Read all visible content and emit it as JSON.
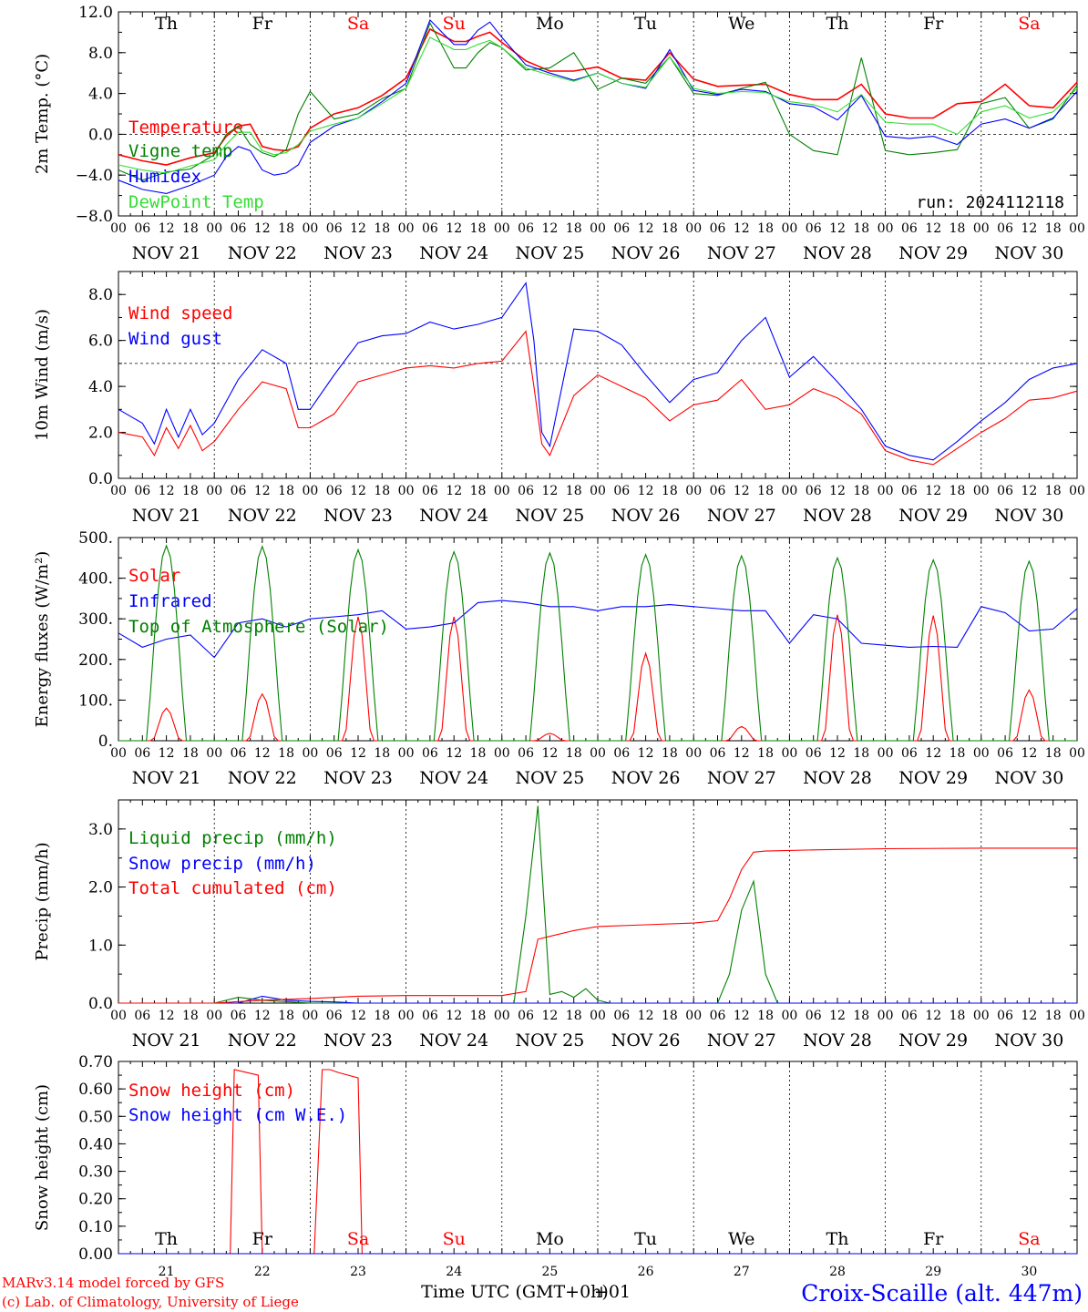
{
  "colors": {
    "red": "#ff0000",
    "green": "#008000",
    "blue": "#0000ff",
    "lightgreen": "#33dd33",
    "black": "#000000"
  },
  "weekday_names": [
    "Th",
    "Fr",
    "Sa",
    "Su",
    "Mo",
    "Tu",
    "We",
    "Th",
    "Fr",
    "Sa"
  ],
  "weekend_flags": [
    false,
    false,
    true,
    true,
    false,
    false,
    false,
    false,
    false,
    true
  ],
  "date_labels": [
    "NOV 21",
    "NOV 22",
    "NOV 23",
    "NOV 24",
    "NOV 25",
    "NOV 26",
    "NOV 27",
    "NOV 28",
    "NOV 29",
    "NOV 30"
  ],
  "hour_ticks": [
    "00",
    "06",
    "12",
    "18"
  ],
  "last_hour_tick": "00",
  "day_numbers": [
    "21",
    "22",
    "23",
    "24",
    "25",
    "26",
    "27",
    "28",
    "29",
    "30"
  ],
  "xlabel": "Time UTC (GMT+0h)",
  "xlabel_overlap": "+01",
  "run_label": "run: 2024112118",
  "footer": {
    "model": "MARv3.14 model forced by GFS",
    "credit": "(c) Lab. of Climatology, University of Liege",
    "station": "Croix-Scaille (alt. 447m)"
  },
  "chart_data": [
    {
      "type": "line",
      "ylabel": "2m Temp. (°C)",
      "ylim": [
        -8,
        12
      ],
      "yticks": [
        "12.0",
        "8.0",
        "4.0",
        "0.0",
        "−4.0",
        "−8.0"
      ],
      "ref_line": 0,
      "x_unit": "hours since NOV 21 00 UTC",
      "series": [
        {
          "name": "Temperature",
          "color": "red",
          "x": [
            0,
            6,
            12,
            18,
            24,
            27,
            30,
            33,
            36,
            39,
            42,
            45,
            48,
            54,
            60,
            66,
            72,
            78,
            84,
            87,
            90,
            93,
            96,
            102,
            108,
            114,
            120,
            126,
            132,
            138,
            144,
            150,
            156,
            162,
            168,
            174,
            180,
            186,
            192,
            198,
            204,
            210,
            216,
            222,
            228,
            234,
            240
          ],
          "values": [
            -2.0,
            -2.6,
            -3.0,
            -2.3,
            -1.8,
            -0.2,
            0.8,
            1.0,
            -1.2,
            -1.5,
            -1.6,
            -1.2,
            0.6,
            2.0,
            2.6,
            3.8,
            5.5,
            10.3,
            9.1,
            9.1,
            9.6,
            10.0,
            9.0,
            7.2,
            6.2,
            6.2,
            6.6,
            5.5,
            5.3,
            8.0,
            5.4,
            4.7,
            4.8,
            4.9,
            3.9,
            3.4,
            3.4,
            4.9,
            2.0,
            1.6,
            1.6,
            3.0,
            3.2,
            4.9,
            2.8,
            2.6,
            5.1
          ]
        },
        {
          "name": "Vigne temp",
          "color": "green",
          "x": [
            0,
            6,
            12,
            18,
            24,
            27,
            30,
            33,
            36,
            39,
            42,
            45,
            48,
            54,
            60,
            66,
            72,
            78,
            84,
            87,
            90,
            93,
            96,
            102,
            108,
            114,
            120,
            126,
            132,
            138,
            144,
            150,
            156,
            162,
            168,
            174,
            180,
            186,
            192,
            198,
            204,
            210,
            216,
            222,
            228,
            234,
            240
          ],
          "values": [
            -3.5,
            -4.5,
            -3.7,
            -3.4,
            -2.0,
            0.0,
            0.8,
            -1.0,
            -1.8,
            -2.2,
            -1.5,
            2.0,
            4.2,
            1.5,
            2.0,
            3.5,
            4.5,
            10.9,
            6.5,
            6.5,
            8.0,
            9.0,
            8.5,
            6.3,
            6.5,
            8.0,
            4.4,
            5.5,
            5.0,
            7.6,
            4.0,
            3.8,
            4.5,
            5.1,
            0.0,
            -1.6,
            -2.0,
            7.5,
            -1.6,
            -2.0,
            -1.8,
            -1.5,
            3.0,
            3.6,
            0.6,
            1.5,
            4.8
          ]
        },
        {
          "name": "Humidex",
          "color": "blue",
          "x": [
            0,
            6,
            12,
            18,
            24,
            27,
            30,
            33,
            36,
            39,
            42,
            45,
            48,
            54,
            60,
            66,
            72,
            78,
            84,
            87,
            90,
            93,
            96,
            102,
            108,
            114,
            120,
            126,
            132,
            138,
            144,
            150,
            156,
            162,
            168,
            174,
            180,
            186,
            192,
            198,
            204,
            210,
            216,
            222,
            228,
            234,
            240
          ],
          "values": [
            -4.5,
            -5.4,
            -5.8,
            -5.0,
            -4.0,
            -2.2,
            -1.2,
            -1.6,
            -3.5,
            -4.0,
            -3.8,
            -3.0,
            -0.8,
            0.8,
            1.6,
            3.2,
            5.0,
            11.2,
            8.8,
            8.8,
            10.2,
            11.0,
            9.5,
            6.8,
            6.0,
            5.3,
            6.0,
            5.0,
            4.5,
            8.3,
            4.3,
            3.9,
            4.4,
            4.2,
            3.0,
            2.7,
            1.4,
            3.8,
            -0.2,
            -0.4,
            -0.2,
            -1.0,
            1.0,
            1.5,
            0.6,
            1.6,
            4.2
          ]
        },
        {
          "name": "DewPoint Temp",
          "color": "lightgreen",
          "x": [
            0,
            6,
            12,
            18,
            24,
            27,
            30,
            33,
            36,
            39,
            42,
            45,
            48,
            54,
            60,
            66,
            72,
            78,
            84,
            87,
            90,
            93,
            96,
            102,
            108,
            114,
            120,
            126,
            132,
            138,
            144,
            150,
            156,
            162,
            168,
            174,
            180,
            186,
            192,
            198,
            204,
            210,
            216,
            222,
            228,
            234,
            240
          ],
          "values": [
            -3.0,
            -3.5,
            -3.8,
            -3.1,
            -2.5,
            -1.0,
            0.2,
            0.2,
            -1.6,
            -2.0,
            -1.8,
            -1.0,
            0.3,
            1.0,
            1.6,
            3.0,
            4.5,
            9.5,
            8.3,
            8.3,
            8.8,
            9.2,
            8.5,
            6.5,
            5.8,
            5.2,
            6.0,
            5.0,
            4.6,
            7.6,
            4.5,
            4.0,
            4.2,
            4.1,
            3.2,
            2.9,
            2.2,
            3.9,
            1.2,
            1.0,
            1.0,
            0.0,
            2.2,
            2.8,
            1.6,
            2.2,
            4.5
          ]
        }
      ]
    },
    {
      "type": "line",
      "ylabel": "10m Wind (m/s)",
      "ylim": [
        0,
        9
      ],
      "yticks": [
        "8.0",
        "6.0",
        "4.0",
        "2.0",
        "0.0"
      ],
      "ref_line": 5,
      "x_unit": "hours since NOV 21 00 UTC",
      "series": [
        {
          "name": "Wind speed",
          "color": "red",
          "x": [
            0,
            6,
            9,
            12,
            15,
            18,
            21,
            24,
            30,
            36,
            42,
            45,
            48,
            54,
            60,
            66,
            72,
            78,
            84,
            90,
            96,
            102,
            104,
            106,
            108,
            114,
            120,
            126,
            132,
            138,
            144,
            150,
            156,
            162,
            168,
            174,
            180,
            186,
            192,
            198,
            204,
            210,
            216,
            222,
            228,
            234,
            240
          ],
          "values": [
            2.0,
            1.8,
            1.0,
            2.2,
            1.3,
            2.3,
            1.2,
            1.6,
            3.0,
            4.2,
            3.9,
            2.2,
            2.2,
            2.8,
            4.2,
            4.5,
            4.8,
            4.9,
            4.8,
            5.0,
            5.1,
            6.4,
            4.0,
            1.5,
            1.0,
            3.6,
            4.5,
            4.0,
            3.5,
            2.5,
            3.2,
            3.4,
            4.3,
            3.0,
            3.2,
            3.9,
            3.5,
            2.8,
            1.2,
            0.8,
            0.6,
            1.3,
            2.0,
            2.6,
            3.4,
            3.5,
            3.8
          ]
        },
        {
          "name": "Wind gust",
          "color": "blue",
          "x": [
            0,
            6,
            9,
            12,
            15,
            18,
            21,
            24,
            30,
            36,
            42,
            45,
            48,
            54,
            60,
            66,
            72,
            78,
            84,
            90,
            96,
            102,
            104,
            106,
            108,
            114,
            120,
            126,
            132,
            138,
            144,
            150,
            156,
            162,
            168,
            174,
            180,
            186,
            192,
            198,
            204,
            210,
            216,
            222,
            228,
            234,
            240
          ],
          "values": [
            3.0,
            2.4,
            1.5,
            3.0,
            1.8,
            3.0,
            1.9,
            2.4,
            4.3,
            5.6,
            5.0,
            3.0,
            3.0,
            4.5,
            5.9,
            6.2,
            6.3,
            6.8,
            6.5,
            6.7,
            7.0,
            8.5,
            6.0,
            2.0,
            1.4,
            6.5,
            6.4,
            5.8,
            4.5,
            3.3,
            4.3,
            4.6,
            6.0,
            7.0,
            4.4,
            5.3,
            4.2,
            3.0,
            1.4,
            1.0,
            0.8,
            1.6,
            2.5,
            3.3,
            4.3,
            4.8,
            5.0
          ]
        }
      ]
    },
    {
      "type": "line",
      "ylabel": "Energy fluxes (W/m²)",
      "ylim": [
        0,
        500
      ],
      "yticks": [
        "500.",
        "400.",
        "300.",
        "200.",
        "100.",
        "0."
      ],
      "x_unit": "hours since NOV 21 00 UTC",
      "series": [
        {
          "name": "Solar",
          "color": "red",
          "peaks": [
            80,
            115,
            305,
            305,
            18,
            215,
            35,
            310,
            308,
            125
          ]
        },
        {
          "name": "Infrared",
          "color": "blue",
          "x": [
            0,
            6,
            12,
            18,
            24,
            30,
            36,
            42,
            48,
            54,
            60,
            66,
            72,
            78,
            84,
            90,
            96,
            102,
            108,
            114,
            120,
            126,
            132,
            138,
            144,
            150,
            156,
            162,
            168,
            174,
            180,
            186,
            192,
            198,
            204,
            210,
            216,
            222,
            228,
            234,
            240
          ],
          "values": [
            265,
            230,
            250,
            260,
            205,
            290,
            300,
            280,
            300,
            305,
            310,
            320,
            275,
            280,
            290,
            340,
            345,
            340,
            330,
            330,
            320,
            330,
            330,
            335,
            330,
            325,
            320,
            320,
            240,
            310,
            300,
            240,
            235,
            230,
            232,
            230,
            330,
            315,
            270,
            275,
            325
          ]
        },
        {
          "name": "Top of Atmosphere (Solar)",
          "color": "green",
          "peaks": [
            480,
            478,
            470,
            465,
            462,
            458,
            455,
            450,
            445,
            442
          ]
        }
      ]
    },
    {
      "type": "line",
      "ylabel": "Precip (mm/h)",
      "ylim": [
        0,
        3.5
      ],
      "yticks": [
        "3.0",
        "2.0",
        "1.0",
        "0.0"
      ],
      "x_unit": "hours since NOV 21 00 UTC",
      "series": [
        {
          "name": "Liquid precip (mm/h)",
          "color": "green",
          "x": [
            0,
            24,
            30,
            36,
            48,
            96,
            99,
            102,
            105,
            108,
            111,
            114,
            117,
            120,
            123,
            126,
            150,
            153,
            156,
            159,
            162,
            165,
            168,
            240
          ],
          "values": [
            0,
            0,
            0.1,
            0.05,
            0,
            0,
            0,
            1.5,
            3.4,
            0.15,
            0.2,
            0.1,
            0.25,
            0.05,
            0,
            0,
            0,
            0.5,
            1.6,
            2.1,
            0.5,
            0,
            0,
            0
          ]
        },
        {
          "name": "Snow precip (mm/h)",
          "color": "blue",
          "x": [
            0,
            30,
            36,
            42,
            48,
            54,
            60,
            240
          ],
          "values": [
            0,
            0,
            0.12,
            0.05,
            0.03,
            0.02,
            0,
            0
          ]
        },
        {
          "name": "Total cumulated (cm)",
          "color": "red",
          "x": [
            0,
            24,
            36,
            48,
            60,
            72,
            96,
            102,
            105,
            108,
            114,
            120,
            132,
            144,
            150,
            153,
            156,
            159,
            162,
            174,
            192,
            216,
            240
          ],
          "values": [
            0,
            0,
            0.05,
            0.08,
            0.12,
            0.13,
            0.13,
            0.2,
            1.1,
            1.15,
            1.25,
            1.32,
            1.35,
            1.38,
            1.42,
            1.8,
            2.3,
            2.6,
            2.62,
            2.64,
            2.66,
            2.67,
            2.67
          ]
        }
      ]
    },
    {
      "type": "line",
      "ylabel": "Snow height (cm)",
      "ylim": [
        0,
        0.7
      ],
      "yticks": [
        "0.70",
        "0.60",
        "0.50",
        "0.40",
        "0.30",
        "0.20",
        "0.10",
        "0.00"
      ],
      "x_unit": "hours since NOV 21 00 UTC",
      "series": [
        {
          "name": "Snow height (cm)",
          "color": "red",
          "x": [
            0,
            28,
            29,
            35,
            36,
            49,
            51,
            53,
            55,
            60,
            61,
            240
          ],
          "values": [
            0,
            0,
            0.67,
            0.65,
            0,
            0,
            0.67,
            0.67,
            0.66,
            0.64,
            0,
            0
          ]
        },
        {
          "name": "Snow height (cm W.E.)",
          "color": "blue",
          "x": [
            0,
            240
          ],
          "values": [
            0,
            0
          ]
        }
      ]
    }
  ]
}
